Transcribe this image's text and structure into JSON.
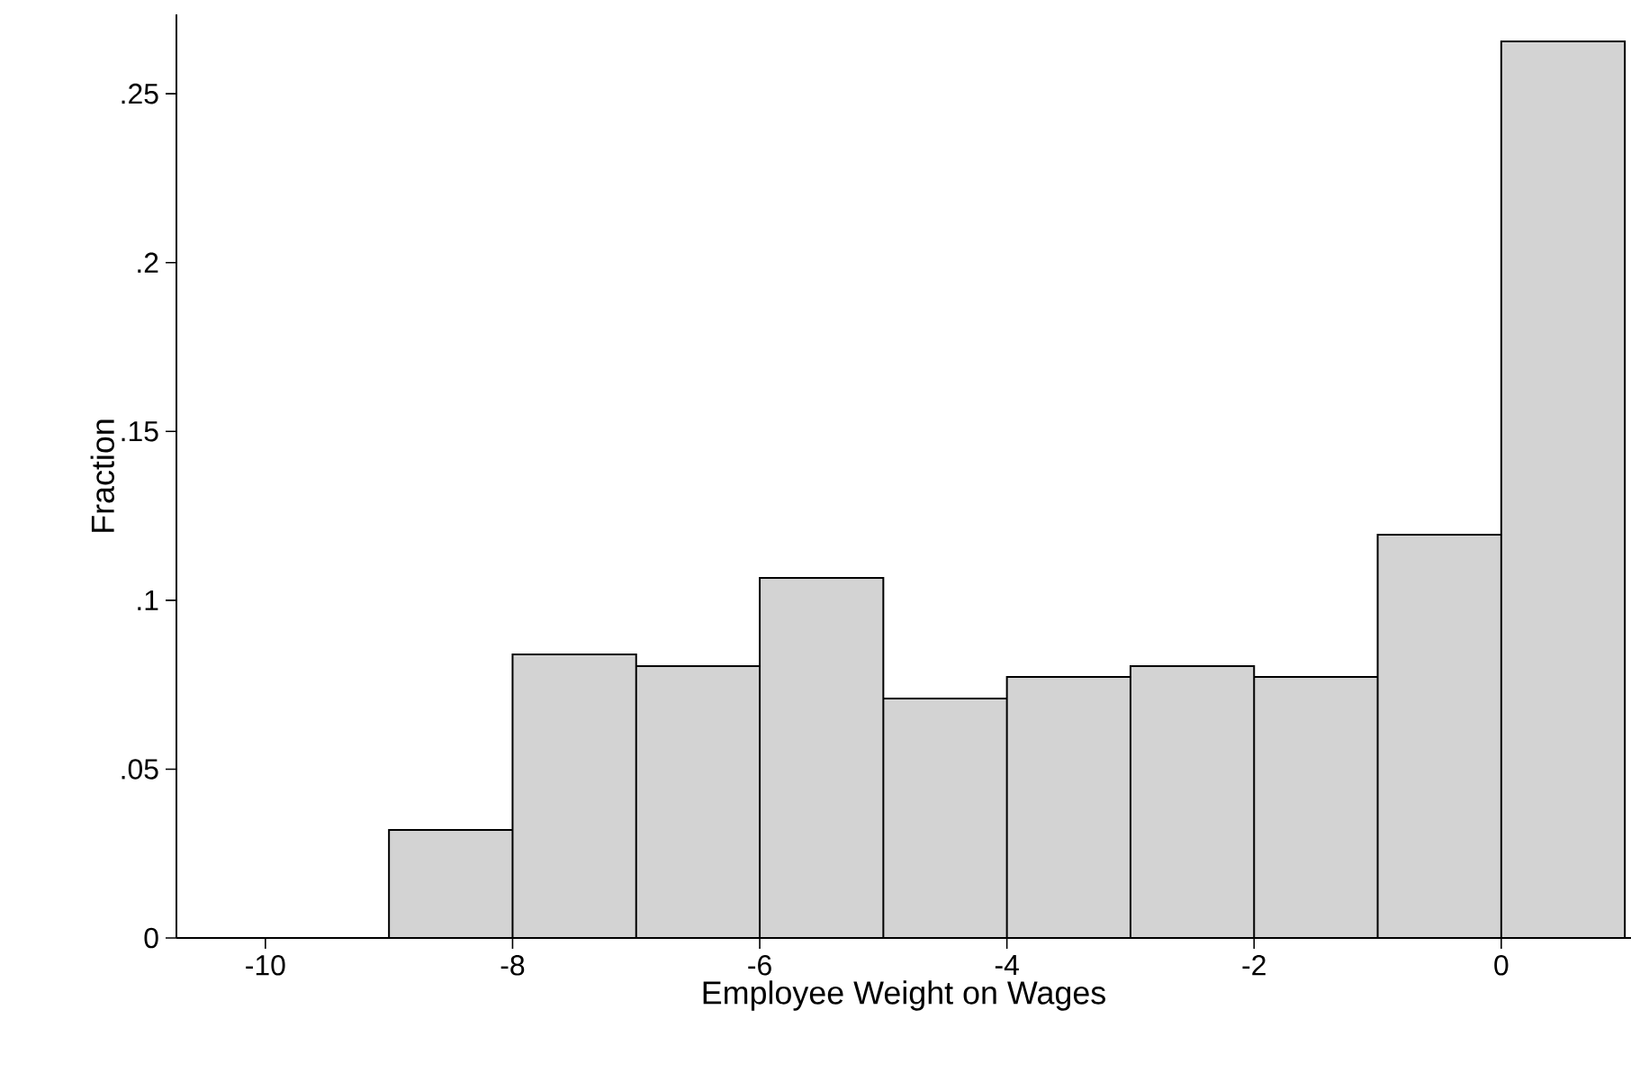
{
  "chart_data": {
    "type": "histogram",
    "xlabel": "Employee Weight on Wages",
    "ylabel": "Fraction",
    "bins": [
      -9,
      -8,
      -7,
      -6,
      -5,
      -4,
      -3,
      -2,
      -1,
      0,
      1
    ],
    "values": [
      0.032,
      0.084,
      0.0805,
      0.1066,
      0.0709,
      0.0773,
      0.0805,
      0.0773,
      0.1194,
      0.2655
    ],
    "color": "#d3d3d3",
    "xlim": [
      -10.72,
      1.05
    ],
    "ylim": [
      0,
      0.2735
    ],
    "xticks": [
      -10,
      -8,
      -6,
      -4,
      -2,
      0
    ],
    "yticks": [
      0,
      {
        "value": 0.05,
        "label": ".05"
      },
      {
        "value": 0.1,
        "label": ".1"
      },
      {
        "value": 0.15,
        "label": ".15"
      },
      {
        "value": 0.2,
        "label": ".2"
      },
      {
        "value": 0.25,
        "label": ".25"
      }
    ],
    "grid": false
  }
}
